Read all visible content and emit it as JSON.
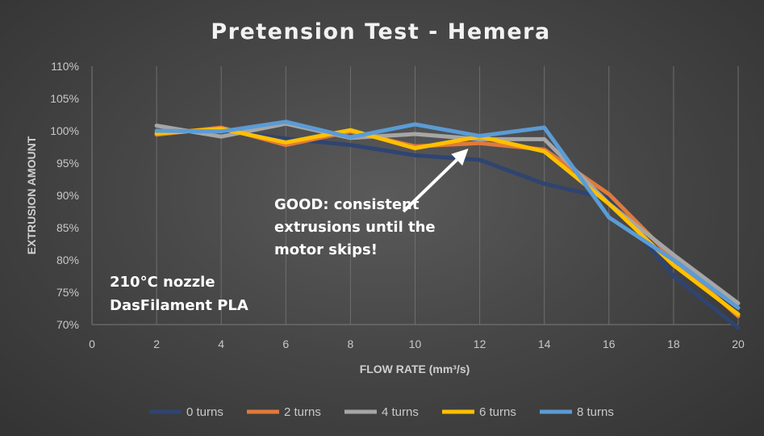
{
  "chart_data": {
    "type": "line",
    "title": "Pretension Test - Hemera",
    "xlabel": "FLOW RATE (mm³/s)",
    "ylabel": "EXTRUSION AMOUNT",
    "xlim": [
      0,
      20
    ],
    "ylim": [
      70,
      110
    ],
    "x_ticks": [
      "0",
      "2",
      "4",
      "6",
      "8",
      "10",
      "12",
      "14",
      "16",
      "18",
      "20"
    ],
    "y_ticks": [
      "70%",
      "75%",
      "80%",
      "85%",
      "90%",
      "95%",
      "100%",
      "105%",
      "110%"
    ],
    "grid": "vertical",
    "legend": "bottom",
    "series": [
      {
        "name": "0 turns",
        "color": "#2f4470",
        "x": [
          2,
          4,
          6,
          8,
          10,
          12,
          14,
          16,
          18,
          20
        ],
        "values": [
          100.0,
          100.0,
          98.8,
          97.8,
          96.2,
          95.5,
          91.8,
          89.5,
          77.5,
          69.5
        ]
      },
      {
        "name": "2 turns",
        "color": "#e07a3a",
        "x": [
          2,
          4,
          6,
          8,
          10,
          12,
          14,
          16,
          18,
          20
        ],
        "values": [
          99.4,
          100.5,
          97.8,
          99.9,
          97.6,
          98.1,
          97.1,
          90.2,
          80.1,
          71.3
        ]
      },
      {
        "name": "4 turns",
        "color": "#a6a6a6",
        "x": [
          2,
          4,
          6,
          8,
          10,
          12,
          14,
          16,
          18,
          20
        ],
        "values": [
          100.8,
          99.1,
          101.1,
          98.9,
          99.5,
          98.7,
          98.7,
          88.7,
          80.8,
          73.3
        ]
      },
      {
        "name": "6 turns",
        "color": "#ffc000",
        "x": [
          2,
          4,
          6,
          8,
          10,
          12,
          14,
          16,
          18,
          20
        ],
        "values": [
          99.6,
          100.3,
          98.2,
          100.1,
          97.3,
          99.1,
          96.8,
          88.7,
          79.2,
          71.6
        ]
      },
      {
        "name": "8 turns",
        "color": "#5b9bd5",
        "x": [
          2,
          4,
          6,
          8,
          10,
          12,
          14,
          16,
          18,
          20
        ],
        "values": [
          100.0,
          99.9,
          101.4,
          99.0,
          101.0,
          99.2,
          100.5,
          86.6,
          80.0,
          72.6
        ]
      }
    ],
    "annotations": [
      {
        "lines": [
          "GOOD: consistent",
          "extrusions until the",
          "motor skips!"
        ],
        "arrow_to": [
          12,
          97.5
        ]
      },
      {
        "lines": [
          "210°C nozzle",
          "DasFilament PLA"
        ]
      }
    ]
  }
}
